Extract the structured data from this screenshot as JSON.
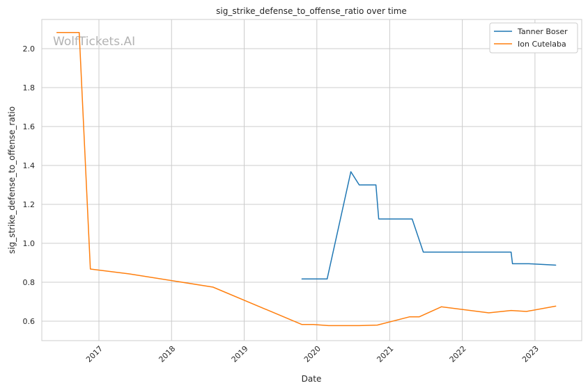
{
  "chart_data": {
    "type": "line",
    "title": "sig_strike_defense_to_offense_ratio over time",
    "xlabel": "Date",
    "ylabel": "sig_strike_defense_to_offense_ratio",
    "watermark": "WolfTickets.AI",
    "xlim": [
      "2016-03-20",
      "2023-08-24"
    ],
    "ylim": [
      0.5,
      2.15
    ],
    "x_ticks": [
      "2017",
      "2018",
      "2019",
      "2020",
      "2021",
      "2022",
      "2023"
    ],
    "y_ticks": [
      "0.6",
      "0.8",
      "1.0",
      "1.2",
      "1.4",
      "1.6",
      "1.8",
      "2.0"
    ],
    "grid": true,
    "legend_position": "top-right",
    "series": [
      {
        "name": "Tanner Boser",
        "color": "#1f77b4",
        "points": [
          [
            "2019-10-18",
            0.817
          ],
          [
            "2020-02-22",
            0.817
          ],
          [
            "2020-06-20",
            1.368
          ],
          [
            "2020-08-01",
            1.3
          ],
          [
            "2020-10-24",
            1.3
          ],
          [
            "2020-11-07",
            1.125
          ],
          [
            "2021-04-24",
            1.125
          ],
          [
            "2021-06-19",
            0.955
          ],
          [
            "2022-02-26",
            0.955
          ],
          [
            "2022-09-03",
            0.955
          ],
          [
            "2022-09-10",
            0.895
          ],
          [
            "2022-12-03",
            0.895
          ],
          [
            "2023-04-15",
            0.888
          ]
        ]
      },
      {
        "name": "Ion Cutelaba",
        "color": "#ff7f0e",
        "points": [
          [
            "2016-06-04",
            2.083
          ],
          [
            "2016-09-24",
            2.083
          ],
          [
            "2016-11-19",
            0.868
          ],
          [
            "2017-06-03",
            0.843
          ],
          [
            "2018-07-28",
            0.775
          ],
          [
            "2019-10-18",
            0.583
          ],
          [
            "2019-12-14",
            0.583
          ],
          [
            "2020-02-29",
            0.577
          ],
          [
            "2020-08-01",
            0.577
          ],
          [
            "2020-10-31",
            0.58
          ],
          [
            "2021-04-10",
            0.622
          ],
          [
            "2021-05-29",
            0.622
          ],
          [
            "2021-09-18",
            0.674
          ],
          [
            "2022-05-14",
            0.643
          ],
          [
            "2022-09-03",
            0.655
          ],
          [
            "2022-11-19",
            0.65
          ],
          [
            "2023-04-15",
            0.677
          ]
        ]
      }
    ]
  }
}
